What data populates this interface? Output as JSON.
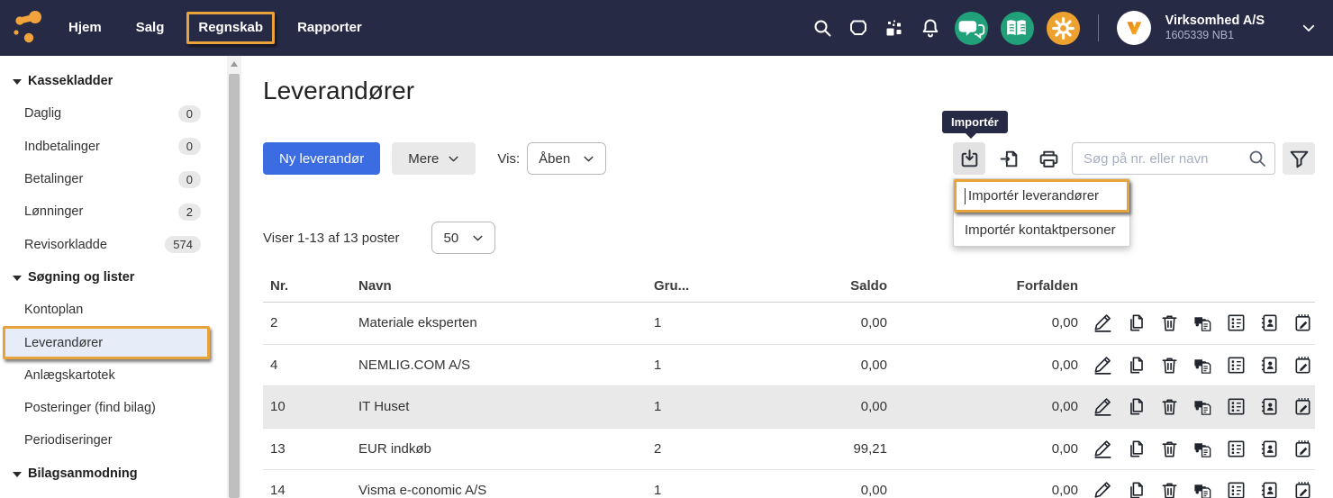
{
  "navbar": {
    "logo": "visma-logo",
    "items": [
      {
        "label": "Hjem"
      },
      {
        "label": "Salg"
      },
      {
        "label": "Regnskab",
        "annotated": true
      },
      {
        "label": "Rapporter"
      }
    ],
    "icons": [
      {
        "name": "search"
      },
      {
        "name": "inbox"
      },
      {
        "name": "apps"
      },
      {
        "name": "notifications"
      },
      {
        "name": "chat",
        "circle": "green"
      },
      {
        "name": "academy-book",
        "circle": "green"
      },
      {
        "name": "settings-gear",
        "circle": "orange"
      }
    ],
    "company": {
      "name": "Virksomhed A/S",
      "number": "1605339 NB1"
    }
  },
  "sidebar": {
    "sections": [
      {
        "title": "Kassekladder",
        "items": [
          {
            "label": "Daglig",
            "badge": "0"
          },
          {
            "label": "Indbetalinger",
            "badge": "0"
          },
          {
            "label": "Betalinger",
            "badge": "0"
          },
          {
            "label": "Lønninger",
            "badge": "2"
          },
          {
            "label": "Revisorkladde",
            "badge": "574"
          }
        ]
      },
      {
        "title": "Søgning og lister",
        "items": [
          {
            "label": "Kontoplan"
          },
          {
            "label": "Leverandører",
            "selected": true,
            "annotated": true
          },
          {
            "label": "Anlægskartotek"
          },
          {
            "label": "Posteringer (find bilag)"
          },
          {
            "label": "Periodiseringer"
          }
        ]
      },
      {
        "title": "Bilagsanmodning",
        "items": []
      }
    ]
  },
  "main": {
    "title": "Leverandører",
    "new_button": "Ny leverandør",
    "more_button": "Mere",
    "vis_label": "Vis:",
    "vis_value": "Åben",
    "tooltip": "Importér",
    "toolbar_icons": [
      {
        "name": "import",
        "active": true
      },
      {
        "name": "export"
      },
      {
        "name": "print"
      }
    ],
    "import_menu": [
      {
        "label": "Importér leverandører",
        "annotated": true,
        "caret": true
      },
      {
        "label": "Importér kontaktpersoner"
      }
    ],
    "search": {
      "placeholder": "Søg på nr. eller navn"
    },
    "filter_icon": "filter",
    "results_text": "Viser 1-13 af 13 poster",
    "page_size": "50",
    "table": {
      "columns": [
        "Nr.",
        "Navn",
        "Gru...",
        "Saldo",
        "Forfalden"
      ],
      "row_actions": [
        "edit",
        "copy",
        "delete",
        "delivery",
        "invoice-list",
        "contacts",
        "note"
      ],
      "rows": [
        {
          "nr": "2",
          "navn": "Materiale eksperten",
          "gruppe": "1",
          "saldo": "0,00",
          "forfalden": "0,00"
        },
        {
          "nr": "4",
          "navn": "NEMLIG.COM A/S",
          "gruppe": "1",
          "saldo": "0,00",
          "forfalden": "0,00"
        },
        {
          "nr": "10",
          "navn": "IT Huset",
          "gruppe": "1",
          "saldo": "0,00",
          "forfalden": "0,00",
          "highlighted": true
        },
        {
          "nr": "13",
          "navn": "EUR indkøb",
          "gruppe": "2",
          "saldo": "99,21",
          "forfalden": "0,00"
        },
        {
          "nr": "14",
          "navn": "Visma e-conomic A/S",
          "gruppe": "1",
          "saldo": "0,00",
          "forfalden": "0,00"
        }
      ]
    }
  },
  "colors": {
    "navbar_bg": "#262a44",
    "brand_orange": "#eda12f",
    "brand_green": "#21a179",
    "primary_blue": "#3b6ce1",
    "annotation_orange": "#e8a33b",
    "selected_item_bg": "#e7edf8",
    "highlight_row_bg": "#e9e9e9"
  }
}
